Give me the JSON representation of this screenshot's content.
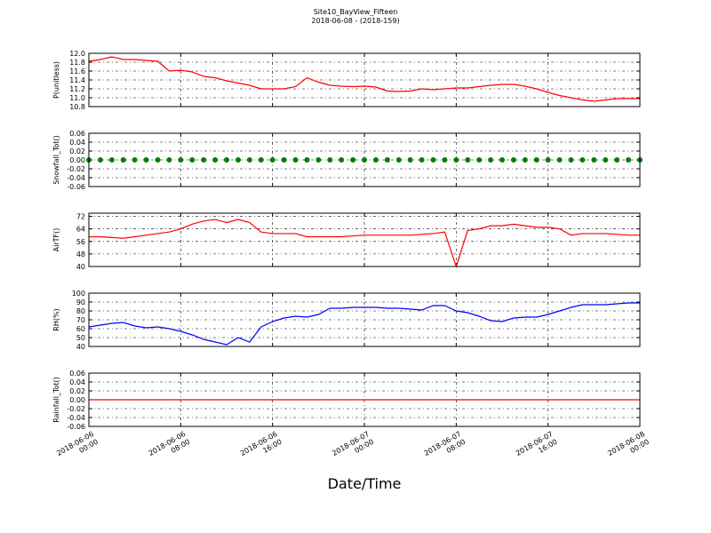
{
  "chart_data": [
    {
      "type": "line",
      "title": "Site10_BayView_Fifteen",
      "subtitle": "2018-06-08 - (2018-159)",
      "ylabel": "P(unitless)",
      "color": "#ff0000",
      "ylim": [
        10.8,
        12.0
      ],
      "yticks": [
        10.8,
        {
          "value": 11,
          "label": "11.0"
        },
        11.2,
        11.4,
        11.6,
        11.8,
        {
          "value": 12,
          "label": "12.0"
        }
      ],
      "values": [
        11.82,
        11.86,
        11.92,
        11.86,
        11.86,
        11.84,
        11.82,
        11.6,
        11.62,
        11.58,
        11.48,
        11.45,
        11.38,
        11.33,
        11.28,
        11.2,
        11.2,
        11.2,
        11.25,
        11.45,
        11.35,
        11.28,
        11.26,
        11.25,
        11.26,
        11.24,
        11.15,
        11.14,
        11.15,
        11.2,
        11.18,
        11.2,
        11.22,
        11.22,
        11.25,
        11.28,
        11.3,
        11.3,
        11.26,
        11.2,
        11.12,
        11.05,
        11.0,
        10.95,
        10.92,
        10.95,
        10.98,
        10.98,
        10.98
      ]
    },
    {
      "type": "scatter",
      "ylabel": "Snowfall_Tot()",
      "color": "#008000",
      "ylim": [
        -0.06,
        0.06
      ],
      "yticks": [
        -0.06,
        -0.04,
        -0.02,
        {
          "value": 0,
          "label": "0.00"
        },
        0.02,
        0.04,
        0.06
      ],
      "values": [
        0,
        0,
        0,
        0,
        0,
        0,
        0,
        0,
        0,
        0,
        0,
        0,
        0,
        0,
        0,
        0,
        0,
        0,
        0,
        0,
        0,
        0,
        0,
        0,
        0,
        0,
        0,
        0,
        0,
        0,
        0,
        0,
        0,
        0,
        0,
        0,
        0,
        0,
        0,
        0,
        0,
        0,
        0,
        0,
        0,
        0,
        0,
        0,
        0
      ]
    },
    {
      "type": "line",
      "ylabel": "AirTF()",
      "color": "#ff0000",
      "ylim": [
        40,
        74
      ],
      "yticks": [
        40,
        48,
        56,
        64,
        72
      ],
      "values": [
        59,
        59,
        58.5,
        58,
        59,
        60,
        61,
        62,
        64,
        67,
        69,
        70,
        68,
        70,
        68,
        62,
        61,
        61,
        61,
        59,
        59,
        59,
        59,
        59.5,
        60,
        60,
        60,
        60,
        60,
        60.5,
        61,
        62,
        40,
        63,
        64,
        66,
        66,
        67,
        66,
        65,
        65,
        64,
        60,
        61,
        61,
        61,
        60.5,
        60,
        60
      ]
    },
    {
      "type": "line",
      "ylabel": "RH(%)",
      "color": "#0000ff",
      "ylim": [
        40,
        100
      ],
      "yticks": [
        40,
        50,
        60,
        70,
        80,
        90,
        100
      ],
      "values": [
        62,
        64,
        66,
        67,
        63,
        61,
        62,
        60,
        57,
        53,
        48,
        45,
        42,
        50,
        45,
        62,
        68,
        72,
        74,
        73,
        76,
        83,
        83,
        84,
        84,
        84,
        83,
        83,
        82,
        81,
        86,
        86,
        80,
        78,
        74,
        69,
        68,
        72,
        73,
        73,
        76,
        80,
        84,
        87,
        87,
        87,
        88,
        89,
        89
      ]
    },
    {
      "type": "line",
      "ylabel": "Rainfall_Tot()",
      "color": "#ff0000",
      "xlabel": "Date/Time",
      "ylim": [
        -0.06,
        0.06
      ],
      "yticks": [
        -0.06,
        -0.04,
        -0.02,
        {
          "value": 0,
          "label": "0.00"
        },
        0.02,
        0.04,
        0.06
      ],
      "values": [
        0,
        0,
        0,
        0,
        0,
        0,
        0,
        0,
        0,
        0,
        0,
        0,
        0,
        0,
        0,
        0,
        0,
        0,
        0,
        0,
        0,
        0,
        0,
        0,
        0,
        0,
        0,
        0,
        0,
        0,
        0,
        0,
        0,
        0,
        0,
        0,
        0,
        0,
        0,
        0,
        0,
        0,
        0,
        0,
        0,
        0,
        0,
        0,
        0
      ],
      "x": [
        "2018-06-06 00:00",
        "2018-06-06 01:00",
        "2018-06-06 02:00",
        "2018-06-06 03:00",
        "2018-06-06 04:00",
        "2018-06-06 05:00",
        "2018-06-06 06:00",
        "2018-06-06 07:00",
        "2018-06-06 08:00",
        "2018-06-06 09:00",
        "2018-06-06 10:00",
        "2018-06-06 11:00",
        "2018-06-06 12:00",
        "2018-06-06 13:00",
        "2018-06-06 14:00",
        "2018-06-06 15:00",
        "2018-06-06 16:00",
        "2018-06-06 17:00",
        "2018-06-06 18:00",
        "2018-06-06 19:00",
        "2018-06-06 20:00",
        "2018-06-06 21:00",
        "2018-06-06 22:00",
        "2018-06-06 23:00",
        "2018-06-07 00:00",
        "2018-06-07 01:00",
        "2018-06-07 02:00",
        "2018-06-07 03:00",
        "2018-06-07 04:00",
        "2018-06-07 05:00",
        "2018-06-07 06:00",
        "2018-06-07 07:00",
        "2018-06-07 08:00",
        "2018-06-07 09:00",
        "2018-06-07 10:00",
        "2018-06-07 11:00",
        "2018-06-07 12:00",
        "2018-06-07 13:00",
        "2018-06-07 14:00",
        "2018-06-07 15:00",
        "2018-06-07 16:00",
        "2018-06-07 17:00",
        "2018-06-07 18:00",
        "2018-06-07 19:00",
        "2018-06-07 20:00",
        "2018-06-07 21:00",
        "2018-06-07 22:00",
        "2018-06-07 23:00",
        "2018-06-08 00:00"
      ],
      "xlim": [
        "2018-06-06 00:00",
        "2018-06-08 00:00"
      ],
      "xticks": [
        "2018-06-06 00:00",
        "2018-06-06 08:00",
        "2018-06-06 16:00",
        "2018-06-07 00:00",
        "2018-06-07 08:00",
        "2018-06-07 16:00",
        "2018-06-08 00:00"
      ]
    }
  ]
}
